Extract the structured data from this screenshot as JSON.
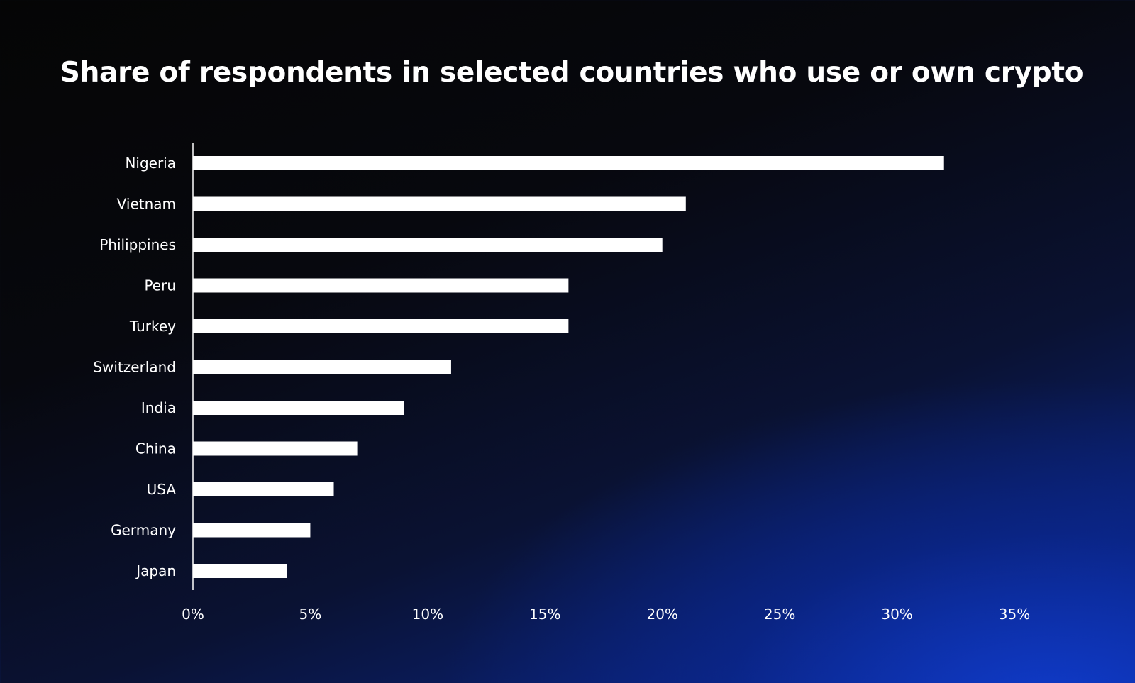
{
  "chart_data": {
    "type": "bar",
    "orientation": "horizontal",
    "title": "Share of respondents in selected countries who use or own crypto",
    "xlabel": "",
    "ylabel": "",
    "categories": [
      "Nigeria",
      "Vietnam",
      "Philippines",
      "Peru",
      "Turkey",
      "Switzerland",
      "India",
      "China",
      "USA",
      "Germany",
      "Japan"
    ],
    "values": [
      32,
      21,
      20,
      16,
      16,
      11,
      9,
      7,
      6,
      5,
      4
    ],
    "xlim": [
      0,
      35
    ],
    "xticks": [
      "0%",
      "5%",
      "10%",
      "15%",
      "20%",
      "25%",
      "30%",
      "35%"
    ],
    "tick_step": 5,
    "grid": false,
    "legend": "none",
    "colors": {
      "bar": "#ffffff",
      "axis": "#ffffff",
      "text": "#ffffff"
    }
  }
}
